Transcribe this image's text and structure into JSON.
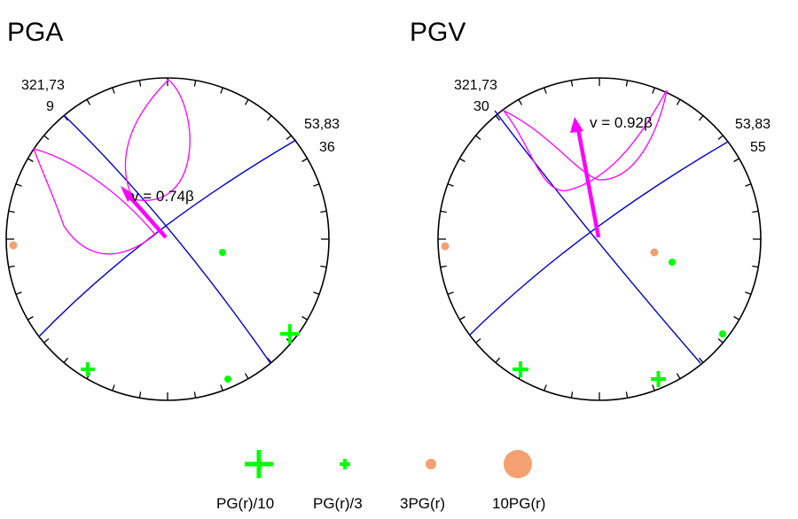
{
  "colors": {
    "plane": "#0000cc",
    "locus": "#ff00ff",
    "vector": "#ff00ff",
    "cross": "#00ff00",
    "dot_green": "#00ff00",
    "dot_orange": "#f4a070",
    "outline": "#000000"
  },
  "panels": [
    {
      "title": "PGA",
      "strike_dip_1": "321,73",
      "value_1": "9",
      "strike_dip_2": "53,83",
      "value_2": "36",
      "velocity_label": "v = 0.74β"
    },
    {
      "title": "PGV",
      "strike_dip_1": "321,73",
      "value_1": "30",
      "strike_dip_2": "53,83",
      "value_2": "55",
      "velocity_label": "v = 0.92β"
    }
  ],
  "legend": [
    {
      "label": "PG(r)/10",
      "symbol": "large-cross"
    },
    {
      "label": "PG(r)/3",
      "symbol": "small-cross"
    },
    {
      "label": "3PG(r)",
      "symbol": "small-circle"
    },
    {
      "label": "10PG(r)",
      "symbol": "large-circle"
    }
  ]
}
